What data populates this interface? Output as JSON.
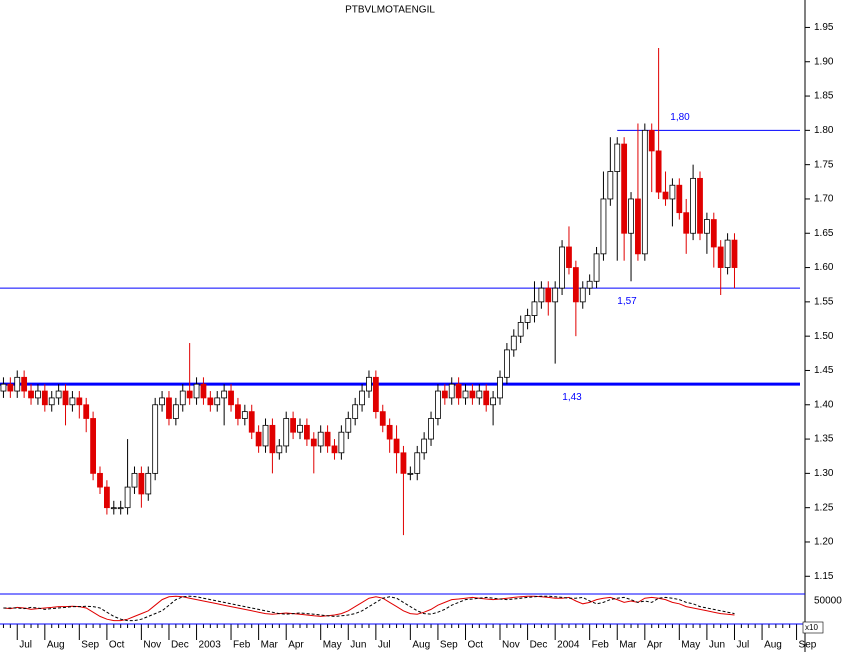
{
  "chart_data": {
    "type": "candlestick",
    "title": "PTBVLMOTAENGIL",
    "categories": [
      null,
      null,
      "Jul",
      null,
      null,
      null,
      "Aug",
      null,
      null,
      null,
      null,
      "Sep",
      null,
      null,
      null,
      "Oct",
      null,
      null,
      null,
      null,
      "Nov",
      null,
      null,
      null,
      "Dec",
      null,
      null,
      null,
      "2003",
      null,
      null,
      null,
      null,
      "Feb",
      null,
      null,
      null,
      "Mar",
      null,
      null,
      null,
      "Apr",
      null,
      null,
      null,
      null,
      "May",
      null,
      null,
      null,
      "Jun",
      null,
      null,
      null,
      "Jul",
      null,
      null,
      null,
      null,
      "Aug",
      null,
      null,
      null,
      "Sep",
      null,
      null,
      null,
      "Oct",
      null,
      null,
      null,
      null,
      "Nov",
      null,
      null,
      null,
      "Dec",
      null,
      null,
      null,
      "2004",
      null,
      null,
      null,
      null,
      "Feb",
      null,
      null,
      null,
      "Mar",
      null,
      null,
      null,
      "Apr",
      null,
      null,
      null,
      null,
      "May",
      null,
      null,
      null,
      "Jun",
      null,
      null,
      null,
      "Jul",
      null,
      null,
      null,
      "Aug",
      null,
      null,
      null,
      null,
      "Sep"
    ],
    "open": [
      1.42,
      1.43,
      1.42,
      1.44,
      1.42,
      1.41,
      1.42,
      1.4,
      1.41,
      1.42,
      1.4,
      1.41,
      1.4,
      1.38,
      1.3,
      1.28,
      1.25,
      1.25,
      1.25,
      1.28,
      1.3,
      1.27,
      1.3,
      1.4,
      1.41,
      1.38,
      1.4,
      1.42,
      1.41,
      1.43,
      1.41,
      1.4,
      1.41,
      1.42,
      1.4,
      1.38,
      1.39,
      1.36,
      1.34,
      1.37,
      1.33,
      1.34,
      1.38,
      1.36,
      1.37,
      1.35,
      1.34,
      1.36,
      1.34,
      1.33,
      1.36,
      1.38,
      1.4,
      1.42,
      1.44,
      1.39,
      1.37,
      1.35,
      1.33,
      1.3,
      1.3,
      1.33,
      1.35,
      1.38,
      1.42,
      1.41,
      1.43,
      1.41,
      1.42,
      1.41,
      1.42,
      1.4,
      1.41,
      1.44,
      1.48,
      1.5,
      1.52,
      1.53,
      1.55,
      1.57,
      1.55,
      1.57,
      1.63,
      1.6,
      1.55,
      1.57,
      1.58,
      1.62,
      1.7,
      1.74,
      1.78,
      1.65,
      1.7,
      1.62,
      1.8,
      1.77,
      1.71,
      1.7,
      1.72,
      1.68,
      1.65,
      1.73,
      1.65,
      1.67,
      1.63,
      1.6,
      1.64,
      null,
      null,
      null,
      null,
      null,
      null,
      null,
      null,
      null
    ],
    "high": [
      1.44,
      1.44,
      1.45,
      1.45,
      1.43,
      1.43,
      1.43,
      1.42,
      1.43,
      1.43,
      1.42,
      1.42,
      1.41,
      1.39,
      1.31,
      1.29,
      1.26,
      1.26,
      1.35,
      1.31,
      1.31,
      1.31,
      1.41,
      1.42,
      1.42,
      1.41,
      1.43,
      1.49,
      1.44,
      1.44,
      1.42,
      1.42,
      1.43,
      1.43,
      1.41,
      1.4,
      1.4,
      1.37,
      1.38,
      1.38,
      1.35,
      1.39,
      1.39,
      1.38,
      1.38,
      1.36,
      1.37,
      1.37,
      1.35,
      1.37,
      1.39,
      1.41,
      1.43,
      1.45,
      1.45,
      1.4,
      1.38,
      1.37,
      1.34,
      1.31,
      1.34,
      1.36,
      1.39,
      1.43,
      1.43,
      1.44,
      1.44,
      1.43,
      1.43,
      1.43,
      1.43,
      1.42,
      1.45,
      1.49,
      1.51,
      1.53,
      1.54,
      1.58,
      1.58,
      1.58,
      1.58,
      1.64,
      1.66,
      1.61,
      1.58,
      1.59,
      1.63,
      1.74,
      1.79,
      1.79,
      1.79,
      1.71,
      1.81,
      1.81,
      1.81,
      1.92,
      1.74,
      1.73,
      1.73,
      1.7,
      1.75,
      1.74,
      1.68,
      1.68,
      1.64,
      1.65,
      1.65,
      null,
      null,
      null,
      null,
      null,
      null,
      null,
      null,
      null
    ],
    "low": [
      1.41,
      1.41,
      1.41,
      1.41,
      1.4,
      1.4,
      1.39,
      1.39,
      1.4,
      1.37,
      1.39,
      1.38,
      1.36,
      1.29,
      1.27,
      1.24,
      1.24,
      1.24,
      1.24,
      1.27,
      1.25,
      1.26,
      1.29,
      1.39,
      1.37,
      1.37,
      1.39,
      1.4,
      1.4,
      1.4,
      1.39,
      1.39,
      1.37,
      1.39,
      1.37,
      1.37,
      1.35,
      1.33,
      1.33,
      1.3,
      1.32,
      1.33,
      1.35,
      1.35,
      1.34,
      1.3,
      1.33,
      1.33,
      1.32,
      1.32,
      1.35,
      1.37,
      1.39,
      1.41,
      1.38,
      1.36,
      1.33,
      1.3,
      1.21,
      1.29,
      1.29,
      1.32,
      1.34,
      1.37,
      1.4,
      1.4,
      1.4,
      1.4,
      1.4,
      1.4,
      1.39,
      1.37,
      1.4,
      1.43,
      1.47,
      1.49,
      1.51,
      1.52,
      1.54,
      1.53,
      1.46,
      1.56,
      1.59,
      1.5,
      1.54,
      1.56,
      1.57,
      1.61,
      1.69,
      1.61,
      1.61,
      1.58,
      1.61,
      1.61,
      1.71,
      1.7,
      1.69,
      1.66,
      1.67,
      1.62,
      1.64,
      1.64,
      1.62,
      1.6,
      1.56,
      1.59,
      1.57,
      null,
      null,
      null,
      null,
      null,
      null,
      null,
      null,
      null
    ],
    "close": [
      1.43,
      1.42,
      1.44,
      1.42,
      1.41,
      1.42,
      1.4,
      1.41,
      1.42,
      1.4,
      1.41,
      1.4,
      1.38,
      1.3,
      1.28,
      1.25,
      1.25,
      1.25,
      1.28,
      1.3,
      1.27,
      1.3,
      1.4,
      1.41,
      1.38,
      1.4,
      1.42,
      1.41,
      1.43,
      1.41,
      1.4,
      1.41,
      1.42,
      1.4,
      1.38,
      1.39,
      1.36,
      1.34,
      1.37,
      1.33,
      1.34,
      1.38,
      1.36,
      1.37,
      1.35,
      1.34,
      1.36,
      1.34,
      1.33,
      1.36,
      1.38,
      1.4,
      1.42,
      1.44,
      1.39,
      1.37,
      1.35,
      1.33,
      1.3,
      1.3,
      1.33,
      1.35,
      1.38,
      1.42,
      1.41,
      1.43,
      1.41,
      1.42,
      1.41,
      1.42,
      1.4,
      1.41,
      1.44,
      1.48,
      1.5,
      1.52,
      1.53,
      1.55,
      1.57,
      1.55,
      1.57,
      1.63,
      1.6,
      1.55,
      1.57,
      1.58,
      1.62,
      1.7,
      1.74,
      1.78,
      1.65,
      1.7,
      1.62,
      1.8,
      1.77,
      1.71,
      1.7,
      1.72,
      1.68,
      1.65,
      1.73,
      1.65,
      1.67,
      1.63,
      1.6,
      1.64,
      1.6,
      null,
      null,
      null,
      null,
      null,
      null,
      null,
      null,
      null
    ],
    "up_color": "#ffffff",
    "down_color": "#e00000",
    "ylim": [
      1.13,
      1.99
    ],
    "yticks": [
      1.15,
      {
        "value": 1.2,
        "label": "1.20"
      },
      1.25,
      {
        "value": 1.3,
        "label": "1.30"
      },
      1.35,
      {
        "value": 1.4,
        "label": "1.40"
      },
      1.45,
      {
        "value": 1.5,
        "label": "1.50"
      },
      1.55,
      {
        "value": 1.6,
        "label": "1.60"
      },
      1.65,
      {
        "value": 1.7,
        "label": "1.70"
      },
      1.75,
      {
        "value": 1.8,
        "label": "1.80"
      },
      1.85,
      {
        "value": 1.9,
        "label": "1.90"
      },
      1.95
    ],
    "hlines": [
      {
        "value": 1.43,
        "label": "1,43",
        "color": "#0000ff",
        "width": 3
      },
      {
        "value": 1.57,
        "label": "1,57",
        "color": "#0000ff",
        "width": 1
      },
      {
        "value": 1.8,
        "label": "1,80",
        "color": "#0000ff",
        "width": 1
      }
    ],
    "indicator": {
      "ylim": [
        0,
        100
      ],
      "volume_ticks": [
        50000
      ],
      "volume_unit": "x10",
      "series": [
        {
          "color": "#e00000",
          "dash": false,
          "values": [
            50,
            48,
            52,
            50,
            45,
            48,
            50,
            52,
            55,
            55,
            56,
            55,
            50,
            35,
            20,
            10,
            5,
            5,
            10,
            20,
            30,
            40,
            60,
            80,
            90,
            92,
            90,
            85,
            80,
            75,
            70,
            65,
            60,
            55,
            50,
            45,
            40,
            35,
            30,
            28,
            30,
            32,
            30,
            28,
            25,
            22,
            20,
            22,
            25,
            30,
            40,
            55,
            70,
            85,
            90,
            85,
            70,
            55,
            40,
            30,
            28,
            35,
            45,
            60,
            70,
            80,
            82,
            85,
            88,
            85,
            82,
            80,
            82,
            85,
            88,
            90,
            92,
            92,
            90,
            88,
            85,
            85,
            88,
            75,
            65,
            70,
            80,
            85,
            88,
            80,
            70,
            75,
            70,
            85,
            88,
            85,
            80,
            70,
            65,
            55,
            50,
            45,
            40,
            35,
            30,
            28,
            25,
            null,
            null,
            null,
            null,
            null,
            null,
            null,
            null,
            null
          ]
        },
        {
          "color": "#000000",
          "dash": true,
          "values": [
            50,
            50,
            50,
            48,
            52,
            50,
            45,
            48,
            50,
            52,
            55,
            55,
            56,
            55,
            50,
            35,
            20,
            10,
            5,
            5,
            10,
            20,
            30,
            40,
            60,
            80,
            90,
            92,
            90,
            85,
            80,
            75,
            70,
            65,
            60,
            55,
            50,
            45,
            40,
            35,
            30,
            28,
            30,
            32,
            30,
            28,
            25,
            22,
            20,
            22,
            25,
            30,
            40,
            55,
            70,
            85,
            90,
            85,
            70,
            55,
            40,
            30,
            28,
            35,
            45,
            60,
            70,
            80,
            82,
            85,
            88,
            85,
            82,
            80,
            82,
            85,
            88,
            90,
            92,
            92,
            90,
            88,
            85,
            85,
            88,
            75,
            65,
            70,
            80,
            85,
            88,
            80,
            70,
            75,
            70,
            85,
            88,
            85,
            80,
            70,
            65,
            55,
            50,
            45,
            40,
            35,
            30,
            null,
            null,
            null,
            null,
            null,
            null,
            null,
            null,
            null
          ]
        }
      ]
    }
  }
}
